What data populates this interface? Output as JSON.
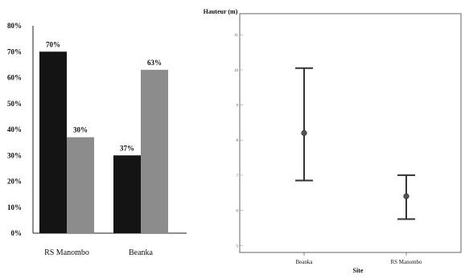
{
  "chart_data": [
    {
      "type": "bar",
      "categories": [
        "RS Manombo",
        "Beanka"
      ],
      "series": [
        {
          "values": [
            70,
            30
          ],
          "color": "#141414"
        },
        {
          "values": [
            37,
            63
          ],
          "color": "#8c8c8c"
        }
      ],
      "data_labels": [
        [
          "70%",
          "30%"
        ],
        [
          "37%",
          "63%"
        ]
      ],
      "ylim": [
        0,
        80
      ],
      "ytick_labels": [
        "0%",
        "10%",
        "20%",
        "30%",
        "40%",
        "50%",
        "60%",
        "70%",
        "80%"
      ],
      "grid": false,
      "legend": "none"
    },
    {
      "type": "errorbar",
      "title": "Hauteur (m)",
      "xlabel": "Site",
      "categories": [
        "Beanka",
        "RS Manombo"
      ],
      "mean": [
        8.2,
        6.4
      ],
      "lower": [
        6.85,
        5.75
      ],
      "upper": [
        10.05,
        7.0
      ],
      "ylim": [
        4.8,
        11.6
      ],
      "ytick_labels": [
        "5",
        "6",
        "7",
        "8",
        "9",
        "10",
        "11"
      ],
      "grid": false,
      "legend": "none"
    }
  ]
}
